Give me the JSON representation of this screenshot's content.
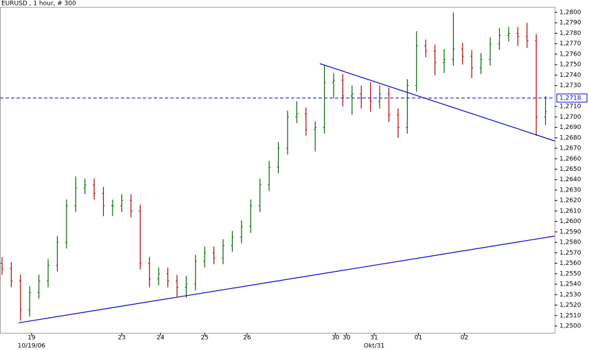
{
  "chart_data": {
    "type": "ohlc",
    "title": "EURUSD , 1 hour, # 300",
    "up_color": "#006400",
    "down_color": "#b00000",
    "line_color": "#0000cc",
    "xlim": [
      0,
      300
    ],
    "ylim": [
      1.25,
      1.28
    ],
    "x": [
      0,
      5,
      10,
      15,
      20,
      25,
      30,
      35,
      40,
      45,
      50,
      55,
      60,
      65,
      70,
      75,
      80,
      85,
      90,
      95,
      100,
      105,
      110,
      115,
      120,
      125,
      130,
      135,
      140,
      145,
      150,
      155,
      160,
      165,
      170,
      175,
      180,
      185,
      190,
      195,
      200,
      205,
      210,
      215,
      220,
      225,
      230,
      235,
      240,
      245,
      250,
      255,
      260,
      265,
      270,
      275,
      280,
      285,
      290,
      295
    ],
    "open": [
      1.256,
      1.2555,
      1.2543,
      1.2515,
      1.2532,
      1.2543,
      1.2558,
      1.258,
      1.2615,
      1.2632,
      1.2635,
      1.2627,
      1.2615,
      1.2615,
      1.262,
      1.261,
      1.256,
      1.2545,
      1.255,
      1.2543,
      1.2537,
      1.254,
      1.2562,
      1.257,
      1.2565,
      1.2577,
      1.2585,
      1.2595,
      1.2615,
      1.2635,
      1.2652,
      1.267,
      1.27,
      1.2703,
      1.2688,
      1.269,
      1.2733,
      1.2735,
      1.272,
      1.2722,
      1.2718,
      1.2715,
      1.2722,
      1.2702,
      1.269,
      1.273,
      1.2768,
      1.2763,
      1.2752,
      1.2755,
      1.2765,
      1.2758,
      1.2747,
      1.2755,
      1.277,
      1.2778,
      1.278,
      1.2777,
      1.2773,
      1.27
    ],
    "high": [
      1.2566,
      1.2561,
      1.2549,
      1.2538,
      1.2549,
      1.2564,
      1.2586,
      1.2621,
      1.2643,
      1.2641,
      1.2641,
      1.2633,
      1.2621,
      1.2626,
      1.2626,
      1.2616,
      1.2566,
      1.2556,
      1.2556,
      1.2549,
      1.2548,
      1.2568,
      1.2576,
      1.2576,
      1.2583,
      1.2591,
      1.2601,
      1.2621,
      1.2641,
      1.2658,
      1.2676,
      1.2706,
      1.2715,
      1.2709,
      1.2696,
      1.275,
      1.2742,
      1.2741,
      1.273,
      1.273,
      1.2733,
      1.273,
      1.2728,
      1.2708,
      1.2736,
      1.2782,
      1.2774,
      1.2769,
      1.2765,
      1.28,
      1.2771,
      1.2764,
      1.2761,
      1.2776,
      1.2785,
      1.2786,
      1.2786,
      1.279,
      1.2779,
      1.272
    ],
    "low": [
      1.2549,
      1.2537,
      1.2505,
      1.2509,
      1.2526,
      1.2537,
      1.2552,
      1.2574,
      1.2609,
      1.2626,
      1.2621,
      1.2605,
      1.2605,
      1.2609,
      1.2604,
      1.2554,
      1.2537,
      1.2539,
      1.2537,
      1.2528,
      1.2527,
      1.2534,
      1.2556,
      1.2559,
      1.2559,
      1.2571,
      1.2579,
      1.2589,
      1.2609,
      1.2629,
      1.2646,
      1.2664,
      1.2694,
      1.2682,
      1.2667,
      1.2684,
      1.2718,
      1.271,
      1.2702,
      1.2708,
      1.2705,
      1.2708,
      1.2695,
      1.268,
      1.2684,
      1.2724,
      1.2757,
      1.274,
      1.2742,
      1.2749,
      1.275,
      1.2737,
      1.2741,
      1.2749,
      1.2764,
      1.2772,
      1.2768,
      1.2766,
      1.2682,
      1.2692
    ],
    "close": [
      1.2555,
      1.2543,
      1.2515,
      1.2532,
      1.2543,
      1.2558,
      1.258,
      1.2615,
      1.2632,
      1.2635,
      1.2627,
      1.2615,
      1.2615,
      1.262,
      1.261,
      1.256,
      1.2545,
      1.255,
      1.2543,
      1.2537,
      1.254,
      1.2562,
      1.257,
      1.2565,
      1.2577,
      1.2585,
      1.2595,
      1.2615,
      1.2635,
      1.2652,
      1.267,
      1.27,
      1.2703,
      1.2688,
      1.269,
      1.2733,
      1.2735,
      1.272,
      1.2722,
      1.2718,
      1.2715,
      1.2722,
      1.2702,
      1.269,
      1.273,
      1.2768,
      1.2763,
      1.2752,
      1.2755,
      1.2765,
      1.2758,
      1.2747,
      1.2755,
      1.277,
      1.2778,
      1.278,
      1.2777,
      1.2773,
      1.27,
      1.2705
    ],
    "yticks": [
      {
        "value": 1.25,
        "label": "1,2500"
      },
      {
        "value": 1.251,
        "label": "1,2510"
      },
      {
        "value": 1.252,
        "label": "1,2520"
      },
      {
        "value": 1.253,
        "label": "1,2530"
      },
      {
        "value": 1.254,
        "label": "1,2540"
      },
      {
        "value": 1.255,
        "label": "1,2550"
      },
      {
        "value": 1.256,
        "label": "1,2560"
      },
      {
        "value": 1.257,
        "label": "1,2570"
      },
      {
        "value": 1.258,
        "label": "1,2580"
      },
      {
        "value": 1.259,
        "label": "1,2590"
      },
      {
        "value": 1.26,
        "label": "1,2600"
      },
      {
        "value": 1.261,
        "label": "1,2610"
      },
      {
        "value": 1.262,
        "label": "1,2620"
      },
      {
        "value": 1.263,
        "label": "1,2630"
      },
      {
        "value": 1.264,
        "label": "1,2640"
      },
      {
        "value": 1.265,
        "label": "1,2650"
      },
      {
        "value": 1.266,
        "label": "1,2660"
      },
      {
        "value": 1.267,
        "label": "1,2670"
      },
      {
        "value": 1.268,
        "label": "1,2680"
      },
      {
        "value": 1.269,
        "label": "1,2690"
      },
      {
        "value": 1.27,
        "label": "1,2700"
      },
      {
        "value": 1.271,
        "label": "1,2710"
      },
      {
        "value": 1.273,
        "label": "1,2730"
      },
      {
        "value": 1.274,
        "label": "1,2740"
      },
      {
        "value": 1.275,
        "label": "1,2750"
      },
      {
        "value": 1.276,
        "label": "1,2760"
      },
      {
        "value": 1.277,
        "label": "1,2770"
      },
      {
        "value": 1.278,
        "label": "1,2780"
      },
      {
        "value": 1.279,
        "label": "1,2790"
      },
      {
        "value": 1.28,
        "label": "1,2800"
      }
    ],
    "xticks": [
      {
        "value": 16,
        "label": "19"
      },
      {
        "value": 65,
        "label": "23"
      },
      {
        "value": 86,
        "label": "24"
      },
      {
        "value": 110,
        "label": "25"
      },
      {
        "value": 133,
        "label": "26"
      },
      {
        "value": 181,
        "label": "30"
      },
      {
        "value": 187,
        "label": "30"
      },
      {
        "value": 202,
        "label": "31"
      },
      {
        "value": 226,
        "label": "01"
      },
      {
        "value": 251,
        "label": "02"
      }
    ],
    "x_sublabels": [
      {
        "value": 16,
        "label": "10/19/06"
      },
      {
        "value": 202,
        "label": "Okt/31"
      }
    ],
    "level": {
      "value": 1.2718,
      "label": "1,2718"
    },
    "trendlines": [
      {
        "x": [
          9,
          300
        ],
        "y": [
          1.2503,
          1.2586
        ]
      },
      {
        "x": [
          172.5,
          300
        ],
        "y": [
          1.2751,
          1.2677
        ]
      }
    ]
  }
}
